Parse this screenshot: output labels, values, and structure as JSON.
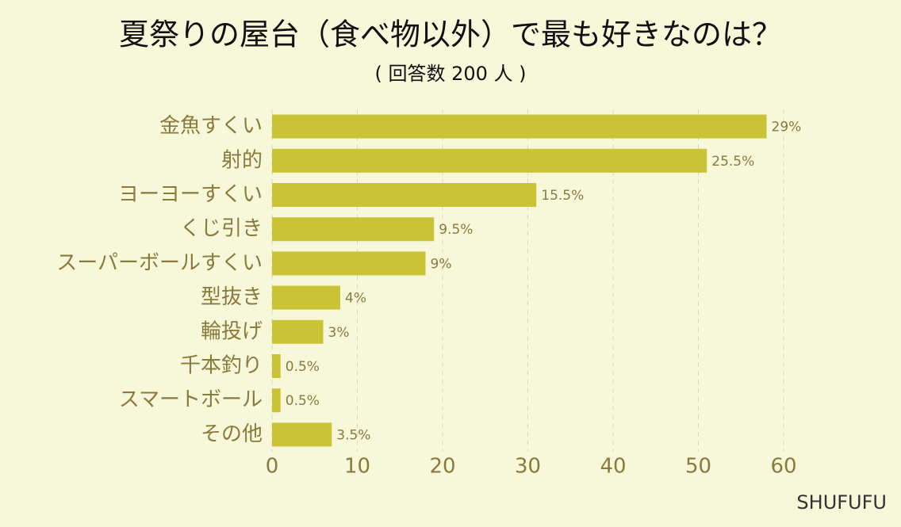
{
  "chart_data": {
    "type": "bar",
    "orientation": "horizontal",
    "title": "夏祭りの屋台（食べ物以外）で最も好きなのは？",
    "subtitle": "( 回答数 200 人 )",
    "source": "SHUFUFU",
    "categories": [
      "金魚すくい",
      "射的",
      "ヨーヨーすくい",
      "くじ引き",
      "スーパーボールすくい",
      "型抜き",
      "輪投げ",
      "千本釣り",
      "スマートボール",
      "その他"
    ],
    "values": [
      58,
      51,
      31,
      19,
      18,
      8,
      6,
      1,
      1,
      7
    ],
    "value_labels": [
      "29%",
      "25.5%",
      "15.5%",
      "9.5%",
      "9%",
      "4%",
      "3%",
      "0.5%",
      "0.5%",
      "3.5%"
    ],
    "color": "#c9c335",
    "xlim": [
      0,
      60
    ],
    "xticks": [
      0,
      10,
      20,
      30,
      40,
      50,
      60
    ],
    "grid": true
  }
}
